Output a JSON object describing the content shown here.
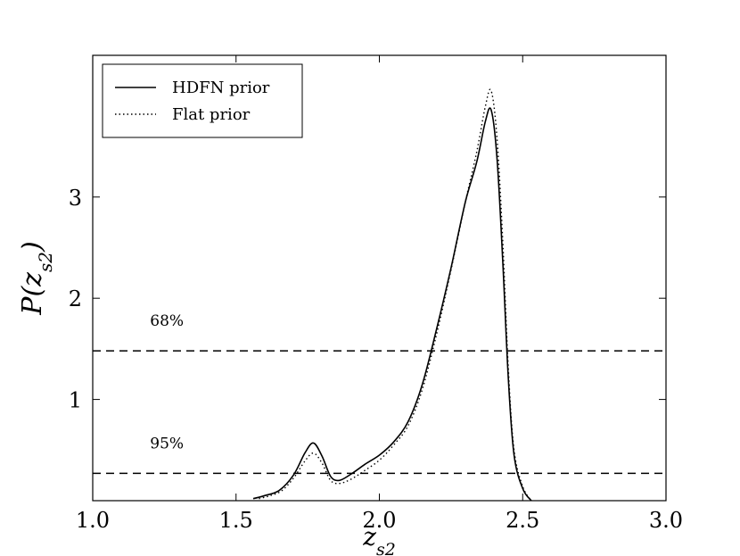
{
  "chart_data": {
    "type": "line",
    "xlabel": "z_s2",
    "ylabel": "P(z_s2)",
    "xlim": [
      1.0,
      3.0
    ],
    "ylim": [
      0.0,
      4.4
    ],
    "xticks": [
      "1.0",
      "1.5",
      "2.0",
      "2.5",
      "3.0"
    ],
    "xtick_values": [
      1.0,
      1.5,
      2.0,
      2.5,
      3.0
    ],
    "yticks": [
      "1",
      "2",
      "3"
    ],
    "ytick_values": [
      1,
      2,
      3
    ],
    "legend_position": "top-left",
    "series": [
      {
        "name": "HDFN prior",
        "style": "solid",
        "x": [
          1.56,
          1.6,
          1.65,
          1.7,
          1.74,
          1.77,
          1.8,
          1.83,
          1.86,
          1.9,
          1.95,
          2.0,
          2.05,
          2.1,
          2.15,
          2.2,
          2.25,
          2.3,
          2.34,
          2.37,
          2.39,
          2.41,
          2.43,
          2.45,
          2.47,
          2.5,
          2.53
        ],
        "y": [
          0.02,
          0.05,
          0.1,
          0.25,
          0.47,
          0.57,
          0.44,
          0.24,
          0.2,
          0.26,
          0.36,
          0.45,
          0.58,
          0.78,
          1.15,
          1.7,
          2.3,
          2.95,
          3.35,
          3.75,
          3.86,
          3.4,
          2.4,
          1.2,
          0.45,
          0.12,
          0.0
        ]
      },
      {
        "name": "Flat prior",
        "style": "dotted",
        "x": [
          1.58,
          1.62,
          1.66,
          1.7,
          1.74,
          1.77,
          1.8,
          1.83,
          1.86,
          1.9,
          1.95,
          2.0,
          2.05,
          2.1,
          2.15,
          2.2,
          2.25,
          2.3,
          2.34,
          2.37,
          2.39,
          2.41,
          2.43,
          2.45,
          2.47,
          2.5,
          2.53
        ],
        "y": [
          0.02,
          0.05,
          0.1,
          0.22,
          0.39,
          0.47,
          0.37,
          0.2,
          0.17,
          0.21,
          0.3,
          0.4,
          0.55,
          0.74,
          1.1,
          1.65,
          2.28,
          2.95,
          3.45,
          3.9,
          4.05,
          3.6,
          2.6,
          1.3,
          0.5,
          0.14,
          0.0
        ]
      }
    ],
    "reference_lines": [
      {
        "y": 1.48,
        "label": "68%",
        "style": "dashed"
      },
      {
        "y": 0.27,
        "label": "95%",
        "style": "dashed"
      }
    ]
  }
}
